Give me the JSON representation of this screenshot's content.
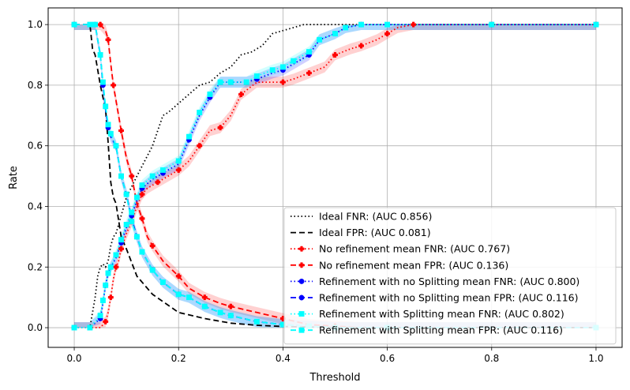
{
  "chart_data": {
    "type": "line",
    "title": "",
    "xlabel": "Threshold",
    "ylabel": "Rate",
    "xlim": [
      -0.05,
      1.05
    ],
    "ylim": [
      -0.065,
      1.055
    ],
    "xticks": [
      0.0,
      0.2,
      0.4,
      0.6,
      0.8,
      1.0
    ],
    "xtick_labels": [
      "0.0",
      "0.2",
      "0.4",
      "0.6",
      "0.8",
      "1.0"
    ],
    "yticks": [
      0.0,
      0.2,
      0.4,
      0.6,
      0.8,
      1.0
    ],
    "ytick_labels": [
      "0.0",
      "0.2",
      "0.4",
      "0.6",
      "0.8",
      "1.0"
    ],
    "grid": true,
    "legend_position": "lower-right",
    "series": [
      {
        "name": "Ideal FNR: (AUC 0.856)",
        "color": "#000000",
        "dash": "dotted",
        "marker": "none",
        "band": false,
        "x": [
          0.0,
          0.03,
          0.04,
          0.045,
          0.05,
          0.055,
          0.06,
          0.065,
          0.07,
          0.075,
          0.08,
          0.09,
          0.1,
          0.12,
          0.15,
          0.17,
          0.18,
          0.2,
          0.22,
          0.24,
          0.26,
          0.28,
          0.3,
          0.32,
          0.34,
          0.36,
          0.38,
          0.4,
          0.42,
          0.44,
          0.46,
          0.5,
          0.55,
          0.6,
          0.7,
          0.8,
          1.0
        ],
        "y": [
          0.0,
          0.0,
          0.1,
          0.17,
          0.2,
          0.21,
          0.2,
          0.22,
          0.27,
          0.3,
          0.31,
          0.37,
          0.43,
          0.5,
          0.6,
          0.7,
          0.71,
          0.74,
          0.77,
          0.8,
          0.81,
          0.84,
          0.86,
          0.9,
          0.91,
          0.93,
          0.97,
          0.98,
          0.99,
          1.0,
          1.0,
          1.0,
          1.0,
          1.0,
          1.0,
          1.0,
          1.0
        ]
      },
      {
        "name": "Ideal FPR: (AUC 0.081)",
        "color": "#000000",
        "dash": "dashed",
        "marker": "none",
        "band": false,
        "x": [
          0.0,
          0.03,
          0.035,
          0.04,
          0.045,
          0.05,
          0.055,
          0.06,
          0.065,
          0.07,
          0.075,
          0.08,
          0.09,
          0.1,
          0.12,
          0.15,
          0.2,
          0.25,
          0.3,
          0.35,
          0.4,
          0.45,
          0.5,
          0.6,
          0.8,
          1.0
        ],
        "y": [
          1.0,
          1.0,
          0.92,
          0.9,
          0.85,
          0.8,
          0.76,
          0.72,
          0.61,
          0.48,
          0.43,
          0.41,
          0.3,
          0.26,
          0.17,
          0.11,
          0.05,
          0.03,
          0.015,
          0.008,
          0.004,
          0.002,
          0.0,
          0.0,
          0.0,
          0.0
        ]
      },
      {
        "name": "No refinement mean FNR: (AUC 0.767)",
        "color": "#ff0000",
        "dash": "dotted",
        "marker": "P",
        "band": true,
        "x": [
          0.0,
          0.05,
          0.06,
          0.065,
          0.07,
          0.075,
          0.08,
          0.085,
          0.09,
          0.1,
          0.11,
          0.12,
          0.13,
          0.14,
          0.16,
          0.18,
          0.2,
          0.22,
          0.24,
          0.26,
          0.28,
          0.3,
          0.32,
          0.35,
          0.4,
          0.42,
          0.45,
          0.48,
          0.5,
          0.53,
          0.55,
          0.58,
          0.6,
          0.62,
          0.65,
          0.7,
          0.8,
          1.0
        ],
        "y": [
          0.0,
          0.0,
          0.02,
          0.05,
          0.1,
          0.16,
          0.2,
          0.22,
          0.26,
          0.31,
          0.35,
          0.4,
          0.44,
          0.46,
          0.48,
          0.5,
          0.52,
          0.55,
          0.6,
          0.65,
          0.66,
          0.7,
          0.77,
          0.81,
          0.81,
          0.82,
          0.84,
          0.86,
          0.9,
          0.92,
          0.93,
          0.95,
          0.97,
          0.99,
          1.0,
          1.0,
          1.0,
          1.0
        ]
      },
      {
        "name": "No refinement mean FPR: (AUC 0.136)",
        "color": "#ff0000",
        "dash": "dashed",
        "marker": "P",
        "band": true,
        "x": [
          0.0,
          0.03,
          0.05,
          0.06,
          0.065,
          0.07,
          0.075,
          0.08,
          0.09,
          0.1,
          0.11,
          0.12,
          0.13,
          0.14,
          0.15,
          0.17,
          0.2,
          0.22,
          0.25,
          0.28,
          0.3,
          0.35,
          0.4,
          0.45,
          0.5,
          0.55,
          0.6,
          0.7,
          1.0
        ],
        "y": [
          1.0,
          1.0,
          1.0,
          0.98,
          0.95,
          0.87,
          0.8,
          0.75,
          0.65,
          0.56,
          0.5,
          0.41,
          0.36,
          0.3,
          0.27,
          0.22,
          0.17,
          0.13,
          0.1,
          0.08,
          0.07,
          0.05,
          0.03,
          0.01,
          0.005,
          0.0,
          0.0,
          0.0,
          0.0
        ]
      },
      {
        "name": "Refinement with no Splitting mean FNR: (AUC 0.800)",
        "color": "#0000ff",
        "dash": "dotted",
        "marker": "o",
        "band": true,
        "x": [
          0.0,
          0.03,
          0.05,
          0.055,
          0.06,
          0.065,
          0.07,
          0.08,
          0.09,
          0.1,
          0.11,
          0.12,
          0.13,
          0.15,
          0.17,
          0.2,
          0.22,
          0.24,
          0.26,
          0.28,
          0.3,
          0.33,
          0.35,
          0.38,
          0.4,
          0.42,
          0.45,
          0.47,
          0.5,
          0.52,
          0.55,
          0.6,
          0.8,
          1.0
        ],
        "y": [
          0.0,
          0.0,
          0.03,
          0.08,
          0.14,
          0.18,
          0.2,
          0.23,
          0.28,
          0.33,
          0.37,
          0.42,
          0.46,
          0.49,
          0.51,
          0.54,
          0.62,
          0.7,
          0.76,
          0.81,
          0.81,
          0.81,
          0.82,
          0.84,
          0.85,
          0.87,
          0.9,
          0.95,
          0.97,
          0.99,
          1.0,
          1.0,
          1.0,
          1.0
        ]
      },
      {
        "name": "Refinement with no Splitting mean FPR: (AUC 0.116)",
        "color": "#0000ff",
        "dash": "dashed",
        "marker": "o",
        "band": true,
        "x": [
          0.0,
          0.03,
          0.04,
          0.05,
          0.055,
          0.06,
          0.065,
          0.07,
          0.08,
          0.09,
          0.1,
          0.11,
          0.12,
          0.13,
          0.15,
          0.17,
          0.2,
          0.22,
          0.25,
          0.28,
          0.3,
          0.35,
          0.4,
          0.45,
          0.5,
          0.6,
          1.0
        ],
        "y": [
          1.0,
          1.0,
          1.0,
          0.9,
          0.8,
          0.72,
          0.66,
          0.63,
          0.6,
          0.5,
          0.44,
          0.36,
          0.3,
          0.25,
          0.19,
          0.15,
          0.11,
          0.1,
          0.07,
          0.05,
          0.04,
          0.02,
          0.01,
          0.005,
          0.0,
          0.0,
          0.0
        ]
      },
      {
        "name": "Refinement with Splitting mean FNR: (AUC 0.802)",
        "color": "#00ffff",
        "dash": "dotted",
        "marker": "s",
        "band": true,
        "x": [
          0.0,
          0.03,
          0.05,
          0.055,
          0.06,
          0.065,
          0.07,
          0.08,
          0.09,
          0.1,
          0.11,
          0.12,
          0.13,
          0.15,
          0.17,
          0.2,
          0.22,
          0.24,
          0.26,
          0.28,
          0.3,
          0.33,
          0.35,
          0.38,
          0.4,
          0.42,
          0.45,
          0.47,
          0.5,
          0.52,
          0.55,
          0.6,
          0.8,
          1.0
        ],
        "y": [
          0.0,
          0.0,
          0.04,
          0.09,
          0.14,
          0.18,
          0.2,
          0.24,
          0.29,
          0.34,
          0.38,
          0.43,
          0.47,
          0.5,
          0.52,
          0.55,
          0.63,
          0.71,
          0.77,
          0.81,
          0.81,
          0.81,
          0.83,
          0.85,
          0.86,
          0.88,
          0.91,
          0.95,
          0.97,
          0.99,
          1.0,
          1.0,
          1.0,
          1.0
        ]
      },
      {
        "name": "Refinement with Splitting mean FPR: (AUC 0.116)",
        "color": "#00ffff",
        "dash": "dashed",
        "marker": "s",
        "band": true,
        "x": [
          0.0,
          0.03,
          0.04,
          0.05,
          0.055,
          0.06,
          0.065,
          0.07,
          0.08,
          0.09,
          0.1,
          0.11,
          0.12,
          0.13,
          0.15,
          0.17,
          0.2,
          0.22,
          0.25,
          0.28,
          0.3,
          0.35,
          0.4,
          0.45,
          0.5,
          0.6,
          1.0
        ],
        "y": [
          1.0,
          1.0,
          1.0,
          0.9,
          0.81,
          0.73,
          0.67,
          0.64,
          0.6,
          0.5,
          0.44,
          0.35,
          0.3,
          0.25,
          0.19,
          0.15,
          0.11,
          0.1,
          0.07,
          0.05,
          0.04,
          0.02,
          0.01,
          0.005,
          0.0,
          0.0,
          0.0
        ]
      }
    ]
  }
}
